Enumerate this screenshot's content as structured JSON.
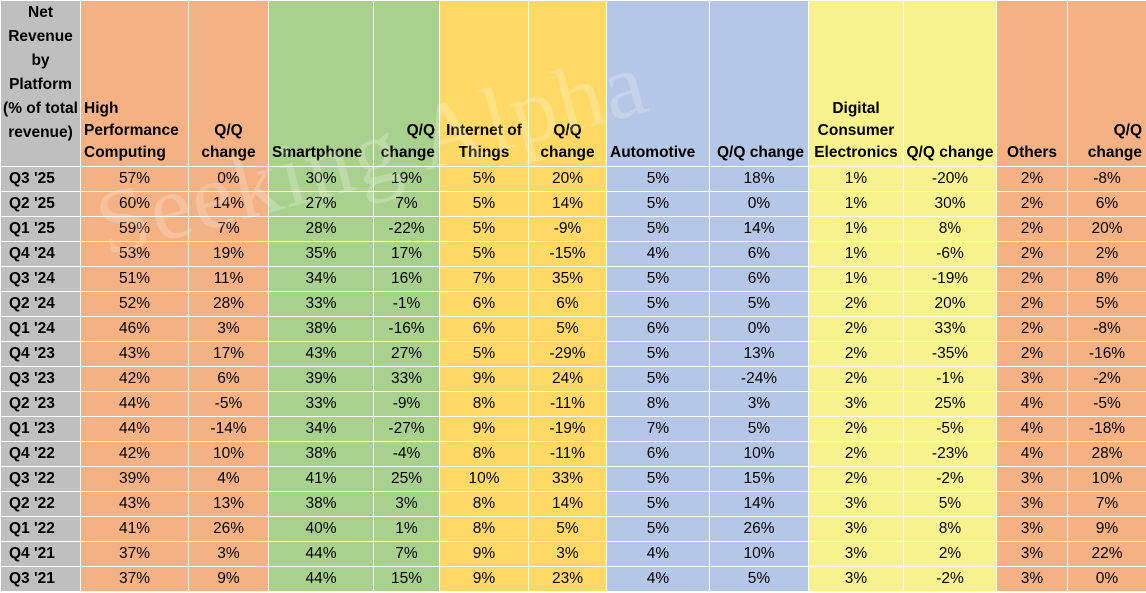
{
  "chart_data": {
    "type": "table",
    "corner_header": "Net Revenue by Platform (% of total revenue)",
    "columns": [
      "High Performance Computing",
      "Q/Q change",
      "Smartphone",
      "Q/Q change",
      "Internet of Things",
      "Q/Q change",
      "Automotive",
      "Q/Q change",
      "Digital Consumer Electronics",
      "Q/Q change",
      "Others",
      "Q/Q change"
    ],
    "colors": {
      "hpc": "#f4b183",
      "smartphone": "#a9d18e",
      "iot": "#ffd966",
      "automotive": "#b4c7e7",
      "dce": "#f8f28e",
      "others": "#f4b183",
      "row_header": "#bfbfbf"
    },
    "rows": [
      {
        "label": "Q3 '25",
        "values": [
          "57%",
          "0%",
          "30%",
          "19%",
          "5%",
          "20%",
          "5%",
          "18%",
          "1%",
          "-20%",
          "2%",
          "-8%"
        ]
      },
      {
        "label": "Q2 '25",
        "values": [
          "60%",
          "14%",
          "27%",
          "7%",
          "5%",
          "14%",
          "5%",
          "0%",
          "1%",
          "30%",
          "2%",
          "6%"
        ]
      },
      {
        "label": "Q1 '25",
        "values": [
          "59%",
          "7%",
          "28%",
          "-22%",
          "5%",
          "-9%",
          "5%",
          "14%",
          "1%",
          "8%",
          "2%",
          "20%"
        ]
      },
      {
        "label": "Q4 '24",
        "values": [
          "53%",
          "19%",
          "35%",
          "17%",
          "5%",
          "-15%",
          "4%",
          "6%",
          "1%",
          "-6%",
          "2%",
          "2%"
        ]
      },
      {
        "label": "Q3 '24",
        "values": [
          "51%",
          "11%",
          "34%",
          "16%",
          "7%",
          "35%",
          "5%",
          "6%",
          "1%",
          "-19%",
          "2%",
          "8%"
        ]
      },
      {
        "label": "Q2 '24",
        "values": [
          "52%",
          "28%",
          "33%",
          "-1%",
          "6%",
          "6%",
          "5%",
          "5%",
          "2%",
          "20%",
          "2%",
          "5%"
        ]
      },
      {
        "label": "Q1 '24",
        "values": [
          "46%",
          "3%",
          "38%",
          "-16%",
          "6%",
          "5%",
          "6%",
          "0%",
          "2%",
          "33%",
          "2%",
          "-8%"
        ]
      },
      {
        "label": "Q4 '23",
        "values": [
          "43%",
          "17%",
          "43%",
          "27%",
          "5%",
          "-29%",
          "5%",
          "13%",
          "2%",
          "-35%",
          "2%",
          "-16%"
        ]
      },
      {
        "label": "Q3 '23",
        "values": [
          "42%",
          "6%",
          "39%",
          "33%",
          "9%",
          "24%",
          "5%",
          "-24%",
          "2%",
          "-1%",
          "3%",
          "-2%"
        ]
      },
      {
        "label": "Q2 '23",
        "values": [
          "44%",
          "-5%",
          "33%",
          "-9%",
          "8%",
          "-11%",
          "8%",
          "3%",
          "3%",
          "25%",
          "4%",
          "-5%"
        ]
      },
      {
        "label": "Q1 '23",
        "values": [
          "44%",
          "-14%",
          "34%",
          "-27%",
          "9%",
          "-19%",
          "7%",
          "5%",
          "2%",
          "-5%",
          "4%",
          "-18%"
        ]
      },
      {
        "label": "Q4 '22",
        "values": [
          "42%",
          "10%",
          "38%",
          "-4%",
          "8%",
          "-11%",
          "6%",
          "10%",
          "2%",
          "-23%",
          "4%",
          "28%"
        ]
      },
      {
        "label": "Q3 '22",
        "values": [
          "39%",
          "4%",
          "41%",
          "25%",
          "10%",
          "33%",
          "5%",
          "15%",
          "2%",
          "-2%",
          "3%",
          "10%"
        ]
      },
      {
        "label": "Q2 '22",
        "values": [
          "43%",
          "13%",
          "38%",
          "3%",
          "8%",
          "14%",
          "5%",
          "14%",
          "3%",
          "5%",
          "3%",
          "7%"
        ]
      },
      {
        "label": "Q1 '22",
        "values": [
          "41%",
          "26%",
          "40%",
          "1%",
          "8%",
          "5%",
          "5%",
          "26%",
          "3%",
          "8%",
          "3%",
          "9%"
        ]
      },
      {
        "label": "Q4 '21",
        "values": [
          "37%",
          "3%",
          "44%",
          "7%",
          "9%",
          "3%",
          "4%",
          "10%",
          "3%",
          "2%",
          "3%",
          "22%"
        ]
      },
      {
        "label": "Q3 '21",
        "values": [
          "37%",
          "9%",
          "44%",
          "15%",
          "9%",
          "23%",
          "4%",
          "5%",
          "3%",
          "-2%",
          "3%",
          "0%"
        ]
      }
    ]
  },
  "watermark": "Seeking Alpha"
}
